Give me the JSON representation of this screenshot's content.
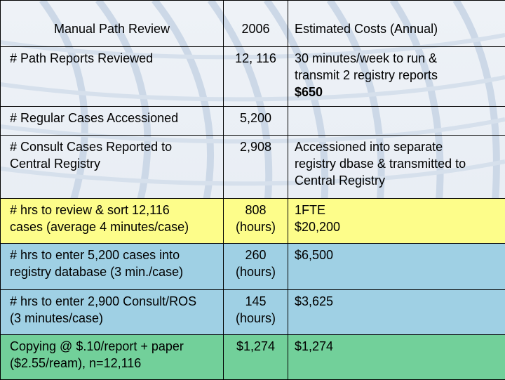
{
  "colors": {
    "yellow_row": "#fdfd8a",
    "blue_row": "#9fd0e4",
    "green_row": "#72d09a",
    "background": "#e9eef4"
  },
  "table": {
    "headers": [
      "Manual Path Review",
      "2006",
      "Estimated Costs (Annual)"
    ],
    "rows": [
      {
        "label": "# Path Reports Reviewed",
        "value": "12, 116",
        "cost_lines": [
          "30 minutes/week to run &",
          "transmit 2 registry reports",
          "$650"
        ]
      },
      {
        "label": "# Regular Cases Accessioned",
        "value": "5,200",
        "cost_lines": []
      },
      {
        "label_lines": [
          "# Consult Cases Reported to",
          "Central Registry"
        ],
        "value": "2,908",
        "cost_lines": [
          "Accessioned into separate",
          "registry dbase & transmitted to",
          "Central Registry"
        ]
      },
      {
        "label_lines": [
          "# hrs to review & sort 12,116",
          "cases (average 4 minutes/case)"
        ],
        "value_lines": [
          "808",
          "(hours)"
        ],
        "cost_lines": [
          "1FTE",
          "$20,200"
        ]
      },
      {
        "label_lines": [
          "# hrs to enter 5,200 cases into",
          "registry database (3 min./case)"
        ],
        "value_lines": [
          "260",
          "(hours)"
        ],
        "cost_lines": [
          "$6,500"
        ]
      },
      {
        "label_lines": [
          "# hrs to enter 2,900 Consult/ROS",
          "(3 minutes/case)"
        ],
        "value_lines": [
          "145",
          "(hours)"
        ],
        "cost_lines": [
          "$3,625"
        ]
      },
      {
        "label_lines": [
          "Copying @ $.10/report + paper",
          "($2.55/ream), n=12,116"
        ],
        "value": "$1,274",
        "cost_lines": [
          "$1,274"
        ]
      }
    ]
  }
}
